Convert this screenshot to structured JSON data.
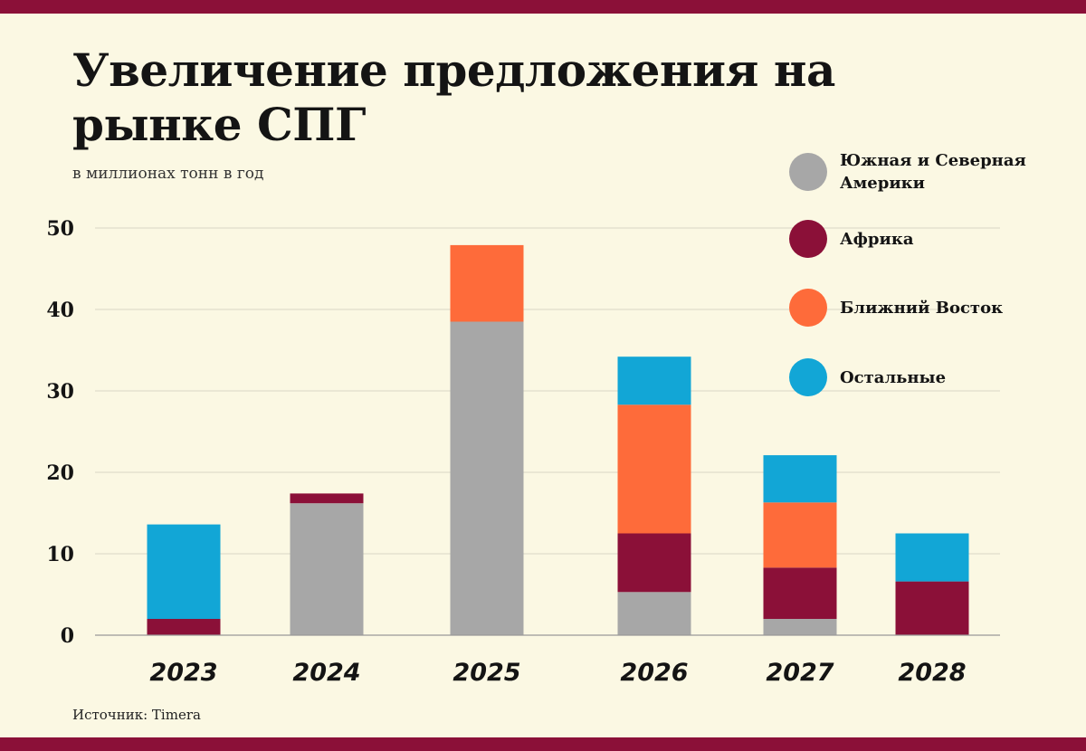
{
  "title": "Увеличение предложения на рынке СПГ",
  "subtitle": "в миллионах тонн в год",
  "source": "Источник: Timera",
  "colors": {
    "background": "#fbf8e3",
    "band": "#8b1038",
    "grid": "#d9d6c4",
    "axis": "#999999"
  },
  "chart_data": {
    "type": "bar",
    "stacked": true,
    "title": "Увеличение предложения на рынке СПГ",
    "subtitle": "в миллионах тонн в год",
    "xlabel": "",
    "ylabel": "",
    "ylim": [
      0,
      50
    ],
    "yticks": [
      0,
      10,
      20,
      30,
      40,
      50
    ],
    "grid": true,
    "legend_position": "right",
    "categories": [
      "2023",
      "2024",
      "2025",
      "2026",
      "2027",
      "2028"
    ],
    "series": [
      {
        "name": "Южная и Северная Америки",
        "color": "#a7a7a7",
        "values": [
          0,
          16.2,
          38.5,
          5.3,
          2.0,
          0
        ]
      },
      {
        "name": "Африка",
        "color": "#8b1038",
        "values": [
          2.0,
          1.2,
          0,
          7.2,
          6.3,
          6.6
        ]
      },
      {
        "name": "Ближний Восток",
        "color": "#fe6b3a",
        "values": [
          0,
          0,
          9.4,
          15.8,
          8.0,
          0
        ]
      },
      {
        "name": "Остальные",
        "color": "#12a6d6",
        "values": [
          11.6,
          0,
          0,
          5.9,
          5.8,
          5.9
        ]
      }
    ]
  }
}
